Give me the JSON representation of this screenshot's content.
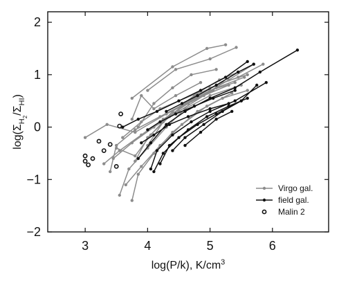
{
  "chart_data": {
    "type": "line",
    "xlabel": "log(P/k), K/cm³",
    "ylabel": "log(ΣH2/ΣHI)",
    "xlim": [
      2.4,
      6.9
    ],
    "ylim": [
      -2,
      2.2
    ],
    "x_ticks": [
      3,
      4,
      5,
      6
    ],
    "y_ticks": [
      -2,
      -1,
      0,
      1,
      2
    ],
    "x_tick_labels": [
      "3",
      "4",
      "5",
      "6"
    ],
    "y_tick_labels": [
      "−2",
      "−1",
      "0",
      "1",
      "2"
    ],
    "grid": false,
    "legend_position": "bottom-right",
    "colors": {
      "virgo": "#8c8c8c",
      "field": "#111111",
      "malin": "#111111"
    },
    "series": [
      {
        "name": "Virgo gal.",
        "marker": "filled-circle",
        "lines": [
          [
            [
              3.75,
              0.55
            ],
            [
              4.4,
              1.15
            ],
            [
              4.95,
              1.5
            ],
            [
              5.25,
              1.57
            ]
          ],
          [
            [
              4.0,
              0.7
            ],
            [
              4.45,
              1.1
            ],
            [
              5.0,
              1.3
            ],
            [
              5.42,
              1.52
            ]
          ],
          [
            [
              3.0,
              -0.2
            ],
            [
              3.35,
              0.05
            ],
            [
              3.8,
              -0.1
            ],
            [
              4.3,
              0.25
            ],
            [
              4.8,
              0.55
            ],
            [
              5.3,
              0.9
            ],
            [
              5.7,
              1.2
            ]
          ],
          [
            [
              3.85,
              0.0
            ],
            [
              4.1,
              0.45
            ],
            [
              4.4,
              0.75
            ],
            [
              4.7,
              1.0
            ],
            [
              5.1,
              1.1
            ]
          ],
          [
            [
              3.4,
              -0.85
            ],
            [
              3.5,
              -0.35
            ],
            [
              3.8,
              -0.05
            ],
            [
              4.2,
              0.2
            ],
            [
              4.6,
              0.45
            ],
            [
              5.0,
              0.7
            ],
            [
              5.4,
              0.85
            ]
          ],
          [
            [
              3.45,
              -0.6
            ],
            [
              3.75,
              -0.3
            ],
            [
              4.1,
              0.0
            ],
            [
              4.5,
              0.3
            ],
            [
              4.9,
              0.6
            ],
            [
              5.3,
              0.8
            ]
          ],
          [
            [
              3.55,
              -1.3
            ],
            [
              3.7,
              -0.8
            ],
            [
              4.0,
              -0.4
            ],
            [
              4.3,
              0.0
            ],
            [
              4.6,
              0.35
            ],
            [
              5.0,
              0.6
            ],
            [
              5.5,
              0.8
            ]
          ],
          [
            [
              3.75,
              -1.4
            ],
            [
              3.85,
              -0.9
            ],
            [
              4.1,
              -0.5
            ],
            [
              4.4,
              -0.1
            ],
            [
              4.8,
              0.3
            ],
            [
              5.2,
              0.55
            ],
            [
              5.6,
              0.7
            ]
          ],
          [
            [
              3.6,
              -0.2
            ],
            [
              3.9,
              0.1
            ],
            [
              4.2,
              0.35
            ],
            [
              4.5,
              0.5
            ],
            [
              4.8,
              0.65
            ],
            [
              5.15,
              0.9
            ],
            [
              5.45,
              1.05
            ]
          ],
          [
            [
              3.8,
              -0.65
            ],
            [
              4.0,
              -0.2
            ],
            [
              4.35,
              0.2
            ],
            [
              4.7,
              0.5
            ],
            [
              5.1,
              0.75
            ],
            [
              5.55,
              0.95
            ]
          ],
          [
            [
              3.3,
              -0.7
            ],
            [
              3.55,
              -0.45
            ],
            [
              3.9,
              -0.15
            ],
            [
              4.25,
              0.15
            ],
            [
              4.65,
              0.45
            ],
            [
              5.05,
              0.7
            ]
          ],
          [
            [
              3.65,
              -1.1
            ],
            [
              3.9,
              -0.75
            ],
            [
              4.2,
              -0.35
            ],
            [
              4.55,
              0.05
            ],
            [
              4.95,
              0.4
            ],
            [
              5.35,
              0.65
            ]
          ],
          [
            [
              4.0,
              -0.35
            ],
            [
              4.25,
              0.1
            ],
            [
              4.6,
              0.45
            ],
            [
              5.0,
              0.75
            ],
            [
              5.45,
              0.95
            ],
            [
              5.85,
              1.2
            ]
          ],
          [
            [
              3.75,
              0.15
            ],
            [
              3.9,
              0.6
            ],
            [
              4.1,
              0.35
            ],
            [
              4.45,
              0.6
            ],
            [
              4.85,
              0.85
            ]
          ],
          [
            [
              3.5,
              -0.4
            ],
            [
              3.8,
              -0.55
            ],
            [
              4.05,
              -0.15
            ],
            [
              4.4,
              0.3
            ],
            [
              4.75,
              0.6
            ],
            [
              5.2,
              0.85
            ],
            [
              5.6,
              1.0
            ]
          ]
        ]
      },
      {
        "name": "field gal.",
        "marker": "filled-circle",
        "lines": [
          [
            [
              3.85,
              -0.6
            ],
            [
              4.05,
              -0.3
            ],
            [
              4.3,
              0.05
            ],
            [
              4.6,
              0.3
            ],
            [
              5.0,
              0.55
            ],
            [
              5.4,
              0.75
            ],
            [
              5.8,
              1.05
            ],
            [
              6.4,
              1.47
            ]
          ],
          [
            [
              4.05,
              -0.8
            ],
            [
              4.15,
              -0.45
            ],
            [
              4.4,
              -0.15
            ],
            [
              4.7,
              0.1
            ],
            [
              5.0,
              0.3
            ],
            [
              5.4,
              0.5
            ],
            [
              5.9,
              0.85
            ]
          ],
          [
            [
              4.1,
              -0.85
            ],
            [
              4.25,
              -0.5
            ],
            [
              4.5,
              -0.2
            ],
            [
              4.8,
              0.05
            ],
            [
              5.1,
              0.25
            ],
            [
              5.5,
              0.5
            ]
          ],
          [
            [
              4.2,
              -0.7
            ],
            [
              4.35,
              -0.35
            ],
            [
              4.65,
              -0.05
            ],
            [
              4.95,
              0.2
            ],
            [
              5.3,
              0.4
            ],
            [
              5.6,
              0.55
            ]
          ],
          [
            [
              4.6,
              -0.35
            ],
            [
              4.85,
              -0.1
            ],
            [
              5.1,
              0.15
            ],
            [
              5.35,
              0.3
            ]
          ],
          [
            [
              4.4,
              -0.45
            ],
            [
              4.6,
              -0.2
            ],
            [
              4.9,
              0.05
            ],
            [
              5.2,
              0.3
            ],
            [
              5.5,
              0.5
            ],
            [
              5.75,
              0.8
            ]
          ],
          [
            [
              4.3,
              0.3
            ],
            [
              4.55,
              0.45
            ],
            [
              4.8,
              0.6
            ],
            [
              5.1,
              0.8
            ],
            [
              5.45,
              1.05
            ],
            [
              5.7,
              1.2
            ]
          ],
          [
            [
              3.6,
              0.0
            ],
            [
              3.85,
              0.15
            ],
            [
              4.15,
              0.3
            ],
            [
              4.5,
              0.5
            ],
            [
              4.85,
              0.7
            ],
            [
              5.25,
              0.95
            ],
            [
              5.6,
              1.25
            ]
          ],
          [
            [
              4.0,
              -0.05
            ],
            [
              4.2,
              0.1
            ],
            [
              4.45,
              0.25
            ],
            [
              4.75,
              0.4
            ],
            [
              5.05,
              0.55
            ],
            [
              5.4,
              0.7
            ]
          ],
          [
            [
              3.9,
              -0.3
            ],
            [
              4.1,
              -0.15
            ],
            [
              4.35,
              0.05
            ],
            [
              4.65,
              0.2
            ],
            [
              5.0,
              0.35
            ],
            [
              5.3,
              0.45
            ]
          ]
        ]
      },
      {
        "name": "Malin 2",
        "marker": "open-circle",
        "points": [
          [
            3.0,
            -0.55
          ],
          [
            3.0,
            -0.65
          ],
          [
            3.05,
            -0.72
          ],
          [
            3.12,
            -0.6
          ],
          [
            3.22,
            -0.27
          ],
          [
            3.3,
            -0.45
          ],
          [
            3.4,
            -0.33
          ],
          [
            3.5,
            -0.75
          ],
          [
            3.55,
            0.02
          ],
          [
            3.57,
            0.25
          ]
        ]
      }
    ]
  }
}
